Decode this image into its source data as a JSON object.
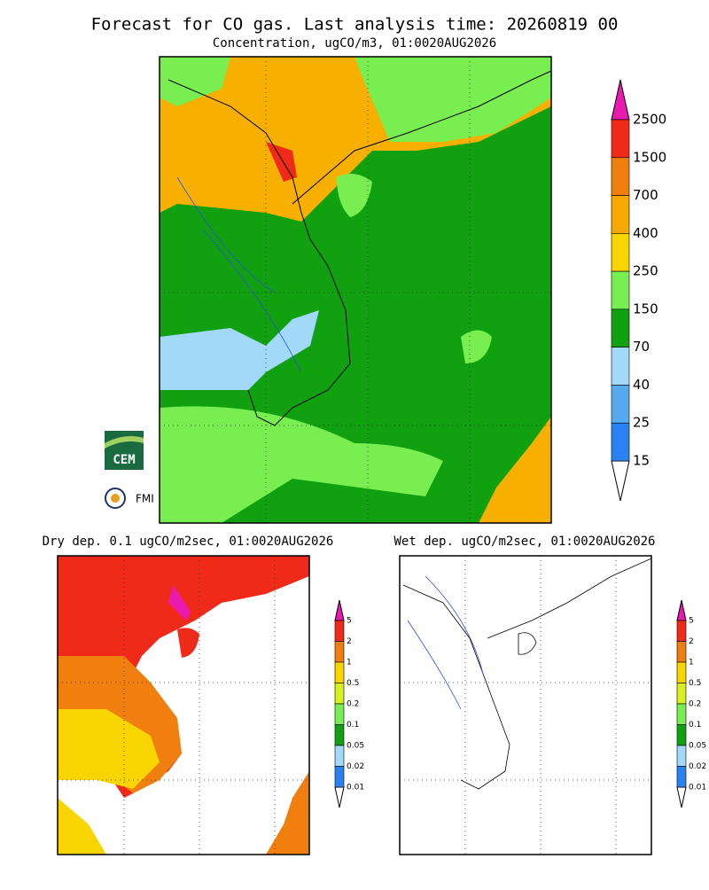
{
  "title": "Forecast for CO gas. Last analysis time: 20260819 00",
  "panels": [
    {
      "subtitle": "Concentration, ugCO/m3, 01:0020AUG2026",
      "legend": {
        "labels": [
          "2500",
          "1500",
          "700",
          "400",
          "250",
          "150",
          "70",
          "40",
          "25",
          "15"
        ],
        "colors": [
          "#f02a18",
          "#f07f10",
          "#f8a800",
          "#f8d400",
          "#78ee50",
          "#10a010",
          "#a2d8f8",
          "#58aaf0",
          "#2a82f0"
        ],
        "over_color": "#e81ab0",
        "under_color": "#ffffff"
      }
    },
    {
      "subtitle": "Dry dep. 0.1 ugCO/m2sec, 01:0020AUG2026",
      "legend": {
        "labels": [
          "5",
          "2",
          "1",
          "0.5",
          "0.2",
          "0.1",
          "0.05",
          "0.02",
          "0.01"
        ],
        "colors": [
          "#f02a18",
          "#f07f10",
          "#f8d400",
          "#d8f020",
          "#78ee50",
          "#10a010",
          "#a2d8f8",
          "#2a82f0"
        ],
        "over_color": "#e81ab0",
        "under_color": "#ffffff"
      }
    },
    {
      "subtitle": "Wet dep. ugCO/m2sec, 01:0020AUG2026",
      "legend": {
        "labels": [
          "5",
          "2",
          "1",
          "0.5",
          "0.2",
          "0.1",
          "0.05",
          "0.02",
          "0.01"
        ],
        "colors": [
          "#f02a18",
          "#f07f10",
          "#f8d400",
          "#d8f020",
          "#78ee50",
          "#10a010",
          "#a2d8f8",
          "#2a82f0"
        ],
        "over_color": "#e81ab0",
        "under_color": "#ffffff"
      }
    }
  ],
  "logos": [
    "CEM",
    "FMI"
  ]
}
